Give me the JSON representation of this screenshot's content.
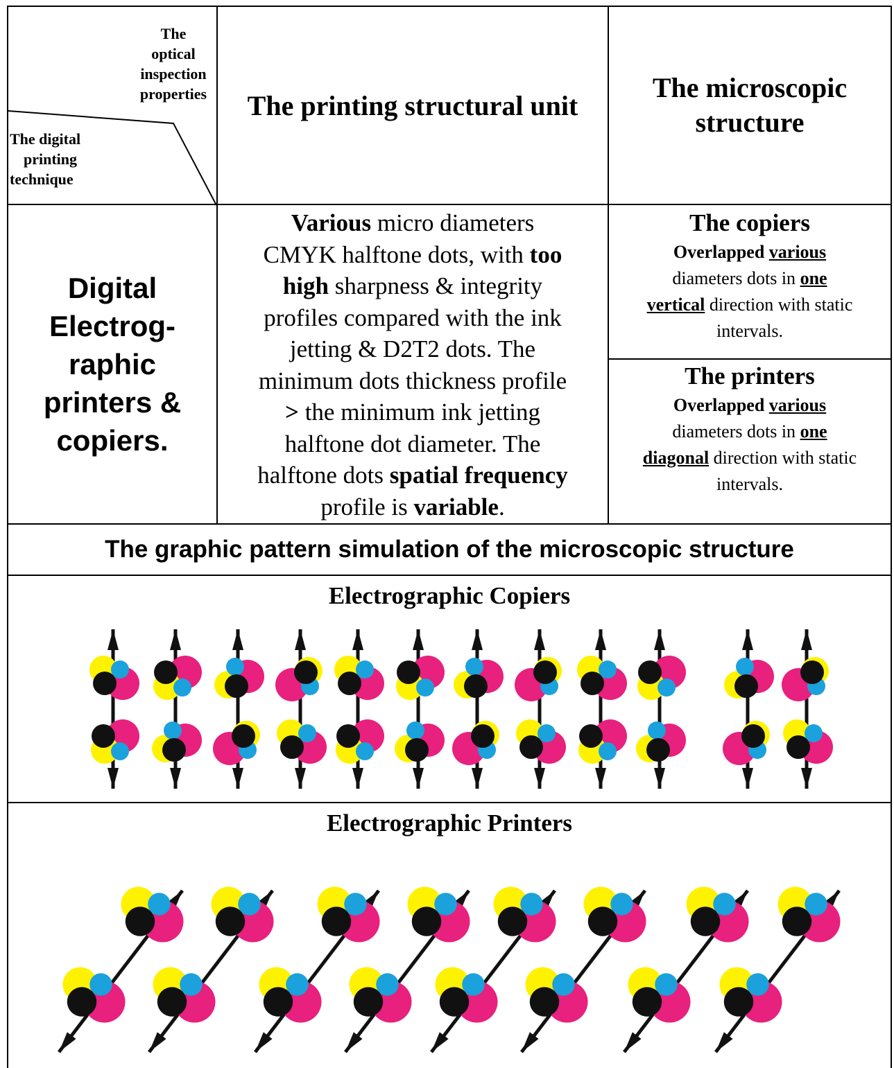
{
  "header": {
    "corner_top": "The optical inspection properties",
    "corner_top_lines": [
      "The",
      "optical",
      "inspection",
      "properties"
    ],
    "corner_bottom": "The digital printing technique",
    "corner_bottom_lines": [
      "The digital",
      "printing",
      "technique"
    ],
    "col2": "The printing structural unit",
    "col3_line1": "The microscopic",
    "col3_line2": "structure"
  },
  "row1": {
    "technique_lines": [
      "Digital",
      "Electrog-",
      "raphic",
      "printers &",
      "copiers."
    ],
    "unit": {
      "l1_b": "Various",
      "l1": " micro diameters",
      "l2": "CMYK halftone dots, with ",
      "l2_b": "too",
      "l3_b": "high",
      "l3": " sharpness & integrity",
      "l4": "profiles compared with the ink",
      "l5": "jetting & D2T2 dots. The",
      "l6": "minimum dots thickness profile",
      "l7_b": ">",
      "l7": " the minimum ink jetting",
      "l8": "halftone dot diameter. The",
      "l9": "halftone dots ",
      "l9_b": "spatial frequency",
      "l10": "profile is ",
      "l10_b": "variable",
      "l10_end": "."
    },
    "copiers": {
      "title": "The copiers",
      "a1": "Overlapped ",
      "a2": "various",
      "b1": "diameters dots in ",
      "b2": "one",
      "c1": "vertical",
      "c2": " direction with static",
      "d1": "intervals."
    },
    "printers": {
      "title": "The printers",
      "a1": "Overlapped ",
      "a2": "various",
      "b1": "diameters dots in ",
      "b2": "one",
      "c1": "diagonal",
      "c2": " direction with static",
      "d1": "intervals."
    }
  },
  "simulation_title": "The graphic pattern simulation of the microscopic structure",
  "copiers_panel_title": "Electrographic Copiers",
  "printers_panel_title": "Electrographic Printers",
  "colors": {
    "cyan": "#1ba1dc",
    "magenta": "#e8207e",
    "yellow": "#fff200",
    "black": "#111111"
  }
}
